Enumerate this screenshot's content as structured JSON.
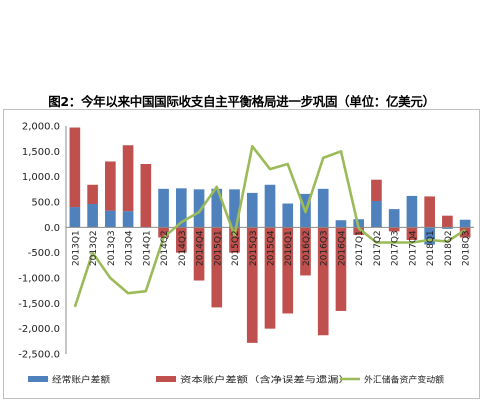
{
  "chart_data": {
    "type": "bar",
    "title": "图2：今年以来中国国际收支自主平衡格局进一步巩固（单位：亿美元）",
    "ylim": [
      -2500,
      2000
    ],
    "yticks": [
      "2,000.0",
      "1,500.0",
      "1,000.0",
      "500.0",
      "0.0",
      "-500.0",
      "-1,000.0",
      "-1,500.0",
      "-2,000.0",
      "-2,500.0"
    ],
    "ytick_values": [
      2000,
      1500,
      1000,
      500,
      0,
      -500,
      -1000,
      -1500,
      -2000,
      -2500
    ],
    "grid": false,
    "legend_position": "bottom",
    "categories": [
      "2013Q1",
      "2013Q2",
      "2013Q3",
      "2013Q4",
      "2014Q1",
      "2014Q2",
      "2014Q3",
      "2014Q4",
      "2015Q1",
      "2015Q2",
      "2015Q3",
      "2015Q4",
      "2016Q1",
      "2016Q2",
      "2016Q3",
      "2016Q4",
      "2017Q1",
      "2017Q2",
      "2017Q3",
      "2017Q4",
      "2018Q1",
      "2018Q2",
      "2018Q3"
    ],
    "series": [
      {
        "name": "经常账户差额",
        "kind": "bar",
        "color": "#4f81bd",
        "values": [
          400,
          460,
          330,
          320,
          0,
          760,
          770,
          750,
          760,
          750,
          680,
          840,
          470,
          660,
          760,
          140,
          160,
          520,
          360,
          620,
          -340,
          -30,
          150
        ]
      },
      {
        "name": "资本账户差额（含净误差与遗漏）",
        "kind": "bar",
        "color": "#c0504d",
        "values": [
          1570,
          380,
          970,
          1300,
          1250,
          -200,
          -500,
          -1050,
          -1580,
          -500,
          -2280,
          -2000,
          -1700,
          -950,
          -2130,
          -1650,
          -150,
          420,
          -80,
          -250,
          610,
          230,
          -200
        ]
      },
      {
        "name": "外汇储备资产变动额",
        "kind": "line",
        "color": "#9bbb59",
        "values": [
          -1570,
          -500,
          -1000,
          -1300,
          -1260,
          -200,
          100,
          300,
          800,
          -160,
          1600,
          1150,
          1250,
          300,
          1370,
          1500,
          -20,
          -300,
          -300,
          -300,
          -250,
          -280,
          -50
        ]
      }
    ]
  }
}
